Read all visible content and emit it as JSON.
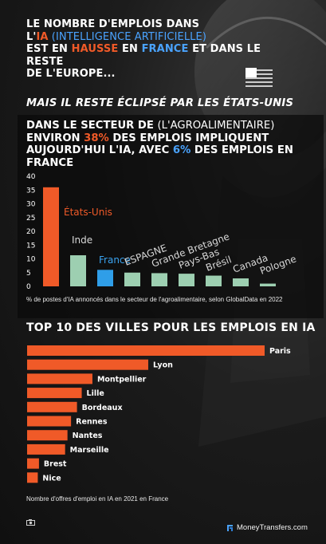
{
  "header": {
    "line1": "LE NOMBRE D'EMPLOIS DANS",
    "ia_prefix": "L'",
    "ia": "IA",
    "ia_full": " (INTELLIGENCE ARTIFICIELLE)",
    "l3_a": "EST EN ",
    "hausse": "HAUSSE",
    "l3_b": " EN ",
    "france": "FRANCE",
    "l3_c": " ET DANS LE RESTE",
    "line4": "DE L'EUROPE..."
  },
  "subtitle": "MAIS IL RESTE ÉCLIPSÉ PAR LES ÉTATS-UNIS",
  "sector_title": {
    "a": "DANS LE SECTEUR DE ",
    "b": "(L'AGROALIMENTAIRE)",
    "c": "ENVIRON ",
    "pct38": "38%",
    "d": " DES EMPLOIS IMPLIQUENT AUJOURD'HUI L'IA, AVEC ",
    "pct6": "6%",
    "e": " DES EMPLOIS EN FRANCE"
  },
  "caption1": "% de postes d'IA annoncés dans le secteur de l'agroalimentaire, selon GlobalData en 2022",
  "title2": "TOP 10 DES VILLES POUR LES EMPLOIS EN IA",
  "caption2": "Nombre d'offres d'emploi en IA en 2021 en France",
  "brand": "MoneyTransfers.com",
  "colors": {
    "orange": "#f05a28",
    "green": "#9dcfb1",
    "blue": "#2f9ee8"
  },
  "chart_data": [
    {
      "type": "bar",
      "categories": [
        "États-Unis",
        "Inde",
        "France",
        "ESPAGNE",
        "Grande Bretagne",
        "Pays-Bas",
        "Brésil",
        "Canada",
        "Pologne"
      ],
      "values": [
        36,
        11.3,
        6,
        5,
        4.8,
        4.6,
        3.9,
        2.9,
        1
      ],
      "colors": [
        "#f05a28",
        "#9dcfb1",
        "#2f9ee8",
        "#9dcfb1",
        "#9dcfb1",
        "#9dcfb1",
        "#9dcfb1",
        "#9dcfb1",
        "#9dcfb1"
      ],
      "label_colors": [
        "#f05a28",
        "#d8d8d8",
        "#3aa3f0",
        "#d8d8d8",
        "#d8d8d8",
        "#d8d8d8",
        "#d8d8d8",
        "#d8d8d8",
        "#d8d8d8"
      ],
      "yticks": [
        0,
        5,
        10,
        15,
        20,
        25,
        30,
        35,
        40
      ],
      "ylim": [
        0,
        40
      ],
      "grid": false
    },
    {
      "type": "bar",
      "orientation": "horizontal",
      "categories": [
        "Paris",
        "Lyon",
        "Montpellier",
        "Lille",
        "Bordeaux",
        "Rennes",
        "Nantes",
        "Marseille",
        "Brest",
        "Nice"
      ],
      "values": [
        100,
        51,
        27.5,
        23,
        21,
        18.5,
        17,
        16,
        5,
        4.5
      ],
      "color": "#f05a28"
    }
  ]
}
